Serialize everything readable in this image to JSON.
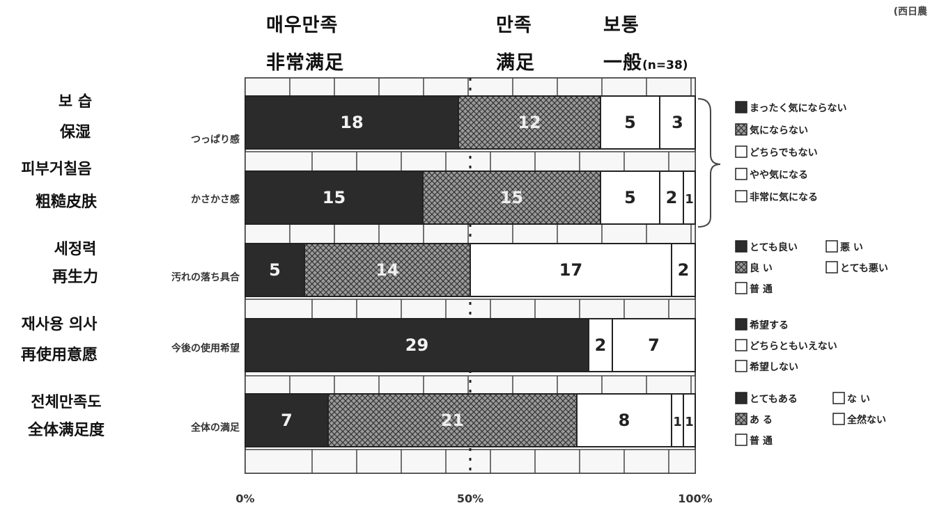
{
  "header": {
    "very_satisfied_ko": "매우만족",
    "very_satisfied_zh": "非常满足",
    "satisfied_ko": "만족",
    "satisfied_zh": "满足",
    "normal_ko": "보통",
    "normal_zh": "一般",
    "sample_size": "(n=38)",
    "source": "(西日農"
  },
  "rows": [
    {
      "ko": "보 습",
      "zh": "保湿",
      "jp": "つっぱり感"
    },
    {
      "ko": "피부거칠음",
      "zh": "粗糙皮肤",
      "jp": "かさかさ感"
    },
    {
      "ko": "세정력",
      "zh": "再生力",
      "jp": "汚れの落ち具合"
    },
    {
      "ko": "재사용 의사",
      "zh": "再使用意愿",
      "jp": "今後の使用希望"
    },
    {
      "ko": "전체만족도",
      "zh": "全体满足度",
      "jp": "全体の満足"
    }
  ],
  "legend_groups": [
    {
      "items": [
        "まったく気にならない",
        "気にならない",
        "どちらでもない",
        "やや気になる",
        "非常に気になる"
      ]
    },
    {
      "items": [
        "とても良い",
        "悪 い",
        "良 い",
        "とても悪い",
        "普 通"
      ]
    },
    {
      "items": [
        "希望する",
        "どちらともいえない",
        "希望しない"
      ]
    },
    {
      "items": [
        "とてもある",
        "な い",
        "あ る",
        "全然ない",
        "普 通"
      ]
    }
  ],
  "chart_data": {
    "type": "bar",
    "orientation": "horizontal",
    "stacked": true,
    "normalized": true,
    "n": 38,
    "categories": [
      "つっぱり感",
      "かさかさ感",
      "汚れの落ち具合",
      "今後の使用希望",
      "全体の満足"
    ],
    "segments": [
      [
        18,
        12,
        5,
        3
      ],
      [
        15,
        15,
        5,
        2,
        1
      ],
      [
        5,
        14,
        17,
        2
      ],
      [
        29,
        2,
        7
      ],
      [
        7,
        21,
        8,
        1,
        1
      ]
    ],
    "segment_labels": [
      [
        "18",
        "12",
        "5",
        "3"
      ],
      [
        "15",
        "15",
        "5",
        "2",
        "1"
      ],
      [
        "5",
        "14",
        "17",
        "2"
      ],
      [
        "29",
        "2",
        "7"
      ],
      [
        "7",
        "21",
        "8",
        "1",
        "1"
      ]
    ],
    "segment_styles": [
      [
        "dark",
        "hatch",
        "white",
        "white"
      ],
      [
        "dark",
        "hatch",
        "white",
        "white",
        "white"
      ],
      [
        "dark",
        "hatch",
        "white",
        "white"
      ],
      [
        "dark",
        "white",
        "white"
      ],
      [
        "dark",
        "hatch",
        "white",
        "white",
        "white"
      ]
    ],
    "x_ticks": [
      "0%",
      "50%",
      "100%"
    ],
    "xlim": [
      0,
      100
    ],
    "colors": {
      "dark": "#2b2b2b",
      "hatch": "#8a8a8a",
      "white": "#ffffff",
      "grid": "#444444"
    }
  }
}
